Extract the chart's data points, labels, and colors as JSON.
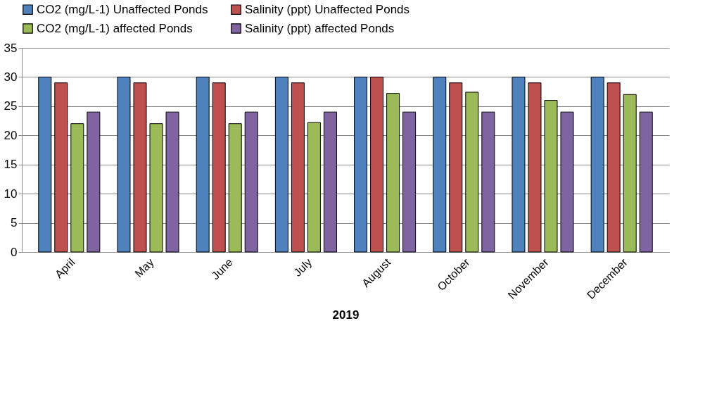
{
  "chart_data": {
    "type": "bar",
    "xlabel": "2019",
    "categories": [
      "April",
      "May",
      "June",
      "July",
      "August",
      "October",
      "November",
      "December"
    ],
    "series": [
      {
        "name": "CO2 (mg/L-1) Unaffected Ponds",
        "color": "#4f81bd",
        "values": [
          30,
          30,
          30,
          30,
          30,
          30,
          30,
          30
        ]
      },
      {
        "name": "Salinity (ppt) Unaffected Ponds",
        "color": "#c0504d",
        "values": [
          29,
          29,
          29,
          29,
          30,
          29,
          29,
          29
        ]
      },
      {
        "name": "CO2 (mg/L-1) affected Ponds",
        "color": "#9bbb59",
        "values": [
          22,
          22,
          22,
          22.2,
          27.2,
          27.4,
          26,
          27
        ]
      },
      {
        "name": "Salinity (ppt) affected Ponds",
        "color": "#8064a2",
        "values": [
          24,
          24,
          24,
          24,
          24,
          24,
          24,
          24
        ]
      }
    ],
    "ylim": [
      0,
      35
    ],
    "yticks": [
      0,
      5,
      10,
      15,
      20,
      25,
      30,
      35
    ],
    "grid": "y",
    "legend": "top"
  }
}
